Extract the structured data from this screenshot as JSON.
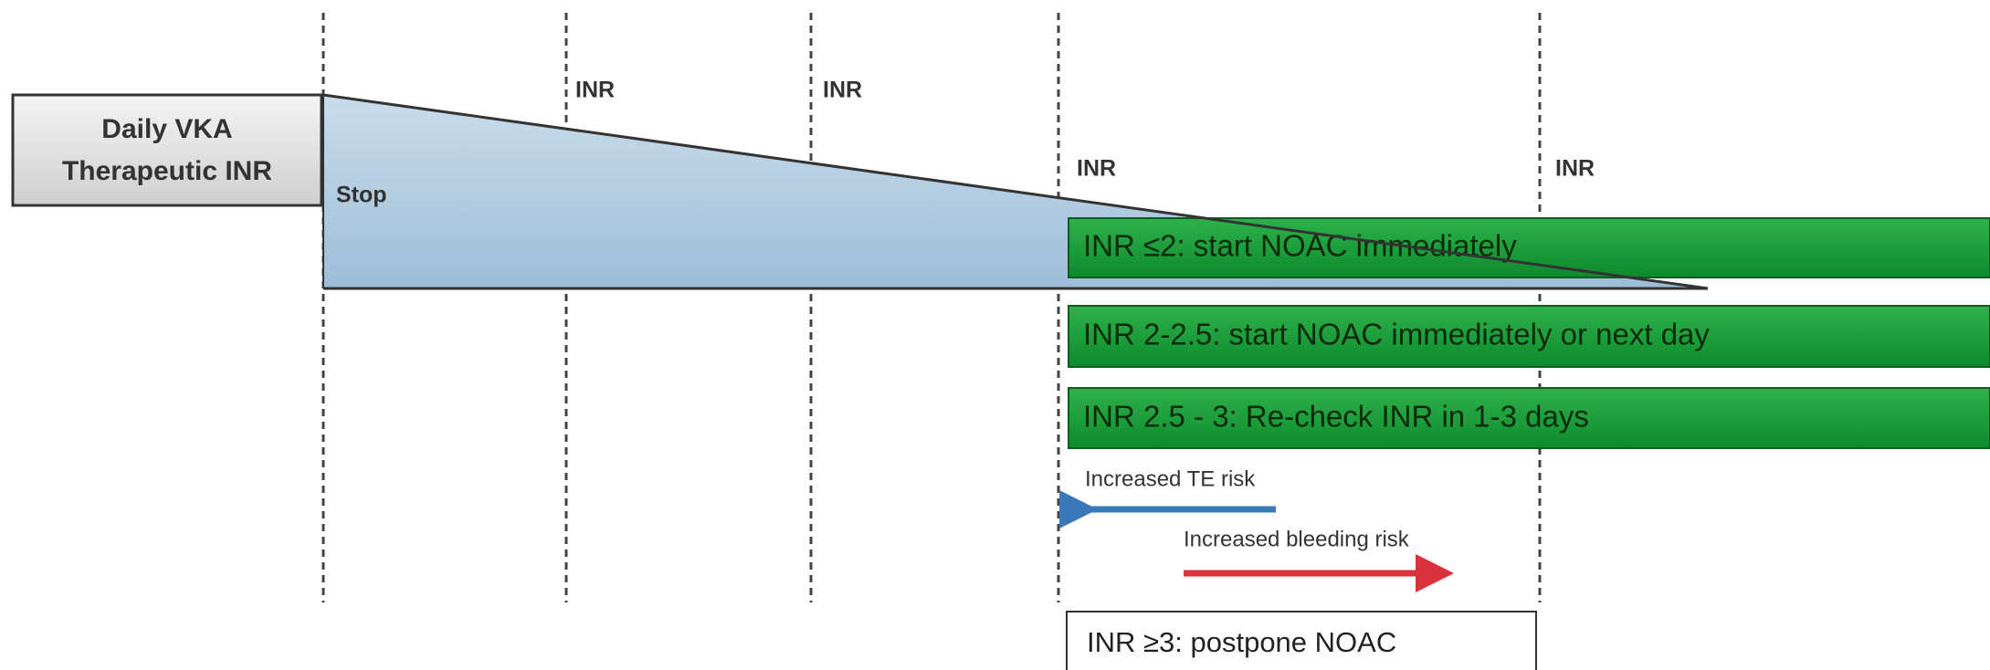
{
  "start_box": {
    "lines": [
      "Daily VKA",
      "Therapeutic INR"
    ]
  },
  "stop_label": "Stop",
  "inr_checks": [
    "INR",
    "INR",
    "INR",
    "INR"
  ],
  "bars": [
    "INR ≤2: start NOAC immediately",
    "INR 2-2.5: start NOAC immediately or next day",
    "INR 2.5 - 3: Re-check INR in 1-3 days"
  ],
  "arrows": {
    "te_risk": "Increased TE risk",
    "bleeding_risk": "Increased bleeding risk"
  },
  "postpone_box": "INR ≥3: postpone NOAC"
}
